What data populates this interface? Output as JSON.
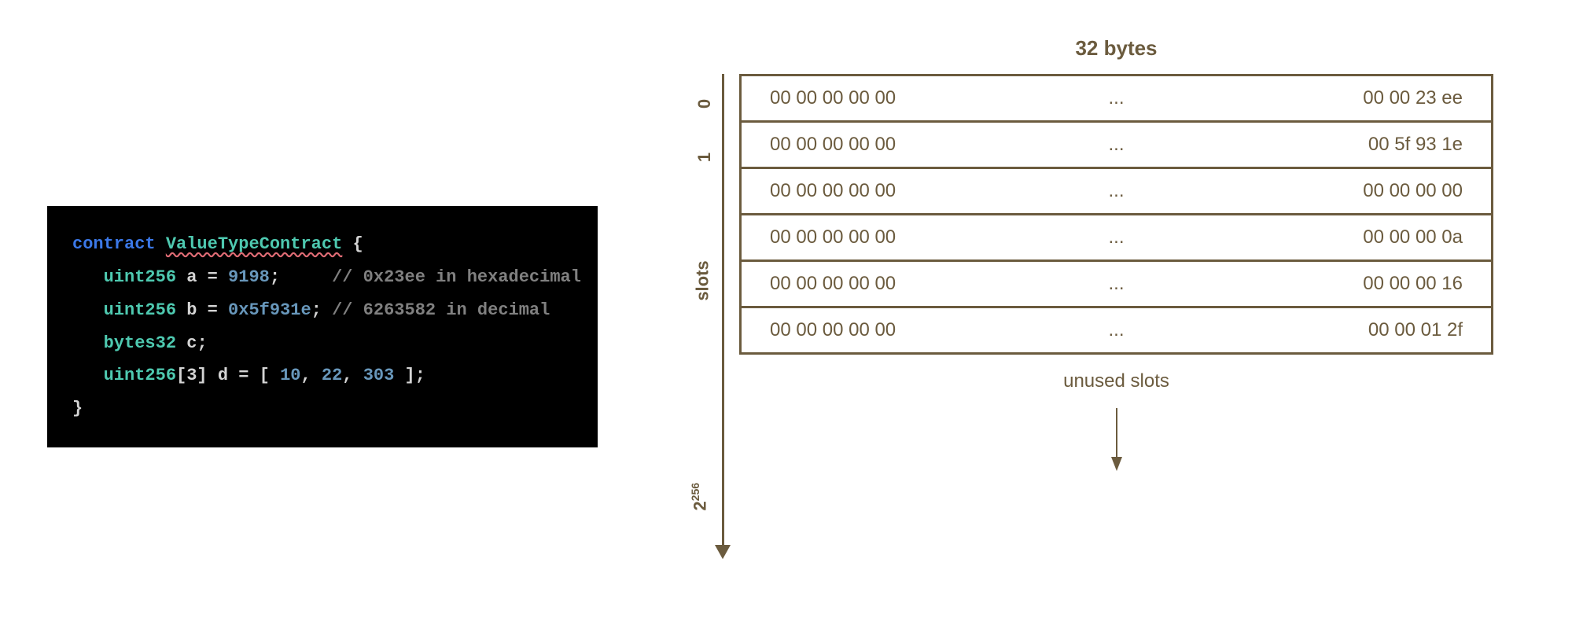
{
  "code": {
    "keyword_contract": "contract",
    "contract_name": "ValueTypeContract",
    "brace_open": " {",
    "line_a": {
      "type": "uint256",
      "var": " a ",
      "eq": "= ",
      "val": "9198",
      "semi": ";",
      "gap": "     ",
      "comment": "// 0x23ee in hexadecimal"
    },
    "line_b": {
      "type": "uint256",
      "var": " b ",
      "eq": "= ",
      "val": "0x5f931e",
      "semi": ";",
      "gap": " ",
      "comment": "// 6263582 in decimal"
    },
    "line_c": {
      "type": "bytes32",
      "var": " c",
      "semi": ";"
    },
    "line_d": {
      "type": "uint256",
      "arr": "[3]",
      "var": " d ",
      "eq": "= ",
      "br_open": "[ ",
      "v1": "10",
      "c1": ", ",
      "v2": "22",
      "c2": ", ",
      "v3": "303",
      "br_close": " ]",
      "semi": ";"
    },
    "brace_close": "}"
  },
  "diagram": {
    "top_label": "32 bytes",
    "side_label": "slots",
    "index_0": "0",
    "index_1": "1",
    "bound_base": "2",
    "bound_exp": "256",
    "unused_label": "unused slots",
    "axis_color": "#6b5b3e",
    "slots": [
      {
        "left": "00 00 00 00 00",
        "mid": "...",
        "right": "00 00 23 ee"
      },
      {
        "left": "00 00 00 00 00",
        "mid": "...",
        "right": "00 5f 93 1e"
      },
      {
        "left": "00 00 00 00 00",
        "mid": "...",
        "right": "00 00 00 00"
      },
      {
        "left": "00 00 00 00 00",
        "mid": "...",
        "right": "00 00 00 0a"
      },
      {
        "left": "00 00 00 00 00",
        "mid": "...",
        "right": "00 00 00 16"
      },
      {
        "left": "00 00 00 00 00",
        "mid": "...",
        "right": "00 00 01 2f"
      }
    ]
  }
}
